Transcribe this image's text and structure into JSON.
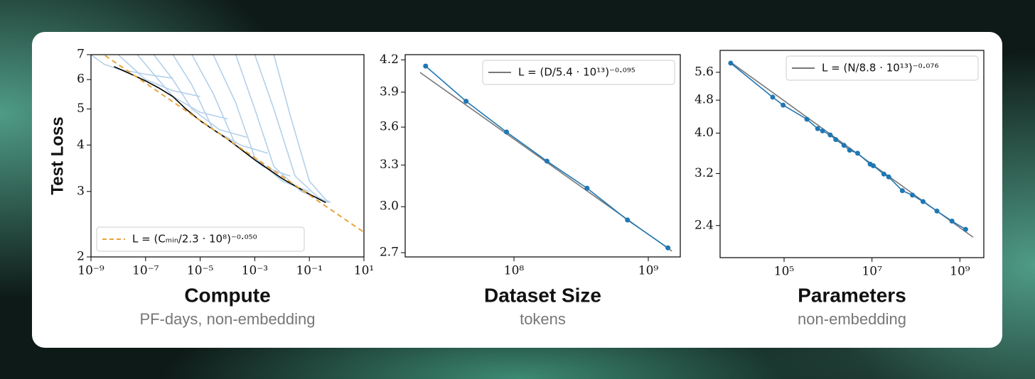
{
  "chart_data": [
    {
      "type": "line",
      "xscale": "log",
      "yscale": "log",
      "ylabel": "Test Loss",
      "xlabel": "Compute",
      "xlabel_sub": "PF-days, non-embedding",
      "xlim": [
        1e-09,
        10
      ],
      "ylim": [
        2,
        7
      ],
      "xticks": [
        {
          "value": 1e-09,
          "label": "10⁻⁹"
        },
        {
          "value": 1e-07,
          "label": "10⁻⁷"
        },
        {
          "value": 1e-05,
          "label": "10⁻⁵"
        },
        {
          "value": 0.001,
          "label": "10⁻³"
        },
        {
          "value": 0.1,
          "label": "10⁻¹"
        },
        {
          "value": 10,
          "label": "10¹"
        }
      ],
      "yticks": [
        2,
        3,
        4,
        5,
        6,
        7
      ],
      "legend": "lower left",
      "series": [
        {
          "color": "#b3d0ea",
          "x": [
            1e-09,
            3e-09,
            1e-08,
            1e-07,
            1e-06
          ],
          "values": [
            7,
            6.6,
            6.4,
            6.2,
            6.05
          ]
        },
        {
          "color": "#b3d0ea",
          "x": [
            1e-08,
            3e-08,
            1e-07,
            1e-06,
            1e-05
          ],
          "values": [
            7,
            6.5,
            6.0,
            5.6,
            5.4
          ]
        },
        {
          "color": "#b3d0ea",
          "x": [
            5e-08,
            2e-07,
            1e-06,
            1e-05,
            0.0001
          ],
          "values": [
            7,
            6.2,
            5.4,
            4.9,
            4.7
          ]
        },
        {
          "color": "#b3d0ea",
          "x": [
            2e-07,
            1e-06,
            5e-06,
            5e-05,
            0.0005
          ],
          "values": [
            7,
            6.0,
            5.0,
            4.4,
            4.2
          ]
        },
        {
          "color": "#b3d0ea",
          "x": [
            1e-06,
            5e-06,
            3e-05,
            0.0003,
            0.003
          ],
          "values": [
            7,
            5.8,
            4.4,
            4.0,
            3.8
          ]
        },
        {
          "color": "#b3d0ea",
          "x": [
            5e-06,
            3e-05,
            0.0002,
            0.002,
            0.02
          ],
          "values": [
            7,
            5.5,
            4.0,
            3.5,
            3.3
          ]
        },
        {
          "color": "#b3d0ea",
          "x": [
            3e-05,
            0.0002,
            0.001,
            0.01,
            0.1
          ],
          "values": [
            7,
            5.2,
            3.7,
            3.2,
            3.0
          ]
        },
        {
          "color": "#b3d0ea",
          "x": [
            0.0002,
            0.001,
            0.005,
            0.05,
            0.3
          ],
          "values": [
            7,
            5.0,
            3.5,
            3.0,
            2.85
          ]
        },
        {
          "color": "#b3d0ea",
          "x": [
            0.001,
            0.005,
            0.03,
            0.2,
            0.5
          ],
          "values": [
            7,
            5.0,
            3.3,
            2.9,
            2.8
          ]
        },
        {
          "color": "#b3d0ea",
          "x": [
            0.005,
            0.02,
            0.1,
            0.4,
            0.6
          ],
          "values": [
            7,
            4.8,
            3.2,
            2.85,
            2.8
          ]
        },
        {
          "color": "#000000",
          "x": [
            7e-09,
            3e-08,
            1e-07,
            3e-07,
            1e-06,
            3e-06,
            1e-05,
            3e-05,
            0.0001,
            0.001,
            0.01,
            0.1,
            0.4
          ],
          "values": [
            6.5,
            6.2,
            5.95,
            5.7,
            5.4,
            5.0,
            4.65,
            4.4,
            4.15,
            3.65,
            3.25,
            2.95,
            2.8
          ]
        },
        {
          "name": "L = (Cₘᵢₙ/2.3 · 10⁸)⁻⁰·⁰⁵⁰",
          "color": "#e8a33a",
          "dash": true,
          "x": [
            1e-09,
            10
          ],
          "values": [
            7.39,
            2.33
          ]
        }
      ]
    },
    {
      "type": "line",
      "xscale": "log",
      "yscale": "log",
      "xlabel": "Dataset Size",
      "xlabel_sub": "tokens",
      "xlim": [
        15500000.0,
        1730000000.0
      ],
      "ylim": [
        2.674,
        4.25
      ],
      "xticks": [
        {
          "value": 100000000.0,
          "label": "10⁸"
        },
        {
          "value": 1000000000.0,
          "label": "10⁹"
        }
      ],
      "yticks": [
        2.7,
        {
          "value": 3,
          "label": "3.0"
        },
        3.3,
        3.6,
        3.9,
        4.2
      ],
      "legend": "upper right",
      "series": [
        {
          "name": "L = (D/5.4 · 10¹³)⁻⁰·⁰⁹⁵",
          "color": "#777777",
          "x": [
            20000000.0,
            1500000000.0
          ],
          "values": [
            4.08,
            2.71
          ]
        },
        {
          "color": "#1f77b4",
          "marker": true,
          "x": [
            22000000.0,
            44000000.0,
            88000000.0,
            176000000.0,
            350000000.0,
            700000000.0,
            1400000000.0
          ],
          "values": [
            4.14,
            3.82,
            3.56,
            3.33,
            3.13,
            2.91,
            2.73
          ]
        }
      ]
    },
    {
      "type": "line",
      "xscale": "log",
      "yscale": "log",
      "xlabel": "Parameters",
      "xlabel_sub": "non-embedding",
      "xlim": [
        3500.0,
        3500000000.0
      ],
      "ylim": [
        2.01,
        6.32
      ],
      "xticks": [
        {
          "value": 100000.0,
          "label": "10⁵"
        },
        {
          "value": 10000000.0,
          "label": "10⁷"
        },
        {
          "value": 1000000000.0,
          "label": "10⁹"
        }
      ],
      "yticks": [
        2.4,
        3.2,
        {
          "value": 4,
          "label": "4.0"
        },
        4.8,
        5.6
      ],
      "legend": "upper right",
      "series": [
        {
          "name": "L = (N/8.8 · 10¹³)⁻⁰·⁰⁷⁶",
          "color": "#777777",
          "x": [
            6100.0,
            2000000000.0
          ],
          "values": [
            5.92,
            2.25
          ]
        },
        {
          "color": "#1f77b4",
          "marker": true,
          "x": [
            6100.0,
            55000.0,
            95000.0,
            330000.0,
            580000.0,
            750000.0,
            1120000.0,
            1500000.0,
            2300000.0,
            3100000.0,
            4700000.0,
            9100000.0,
            10700000.0,
            18600000.0,
            24000000.0,
            49000000.0,
            83000000.0,
            145000000.0,
            300000000.0,
            660000000.0,
            1350000000.0
          ],
          "values": [
            5.89,
            4.88,
            4.67,
            4.32,
            4.1,
            4.05,
            3.96,
            3.86,
            3.74,
            3.64,
            3.58,
            3.37,
            3.34,
            3.19,
            3.14,
            2.91,
            2.84,
            2.74,
            2.6,
            2.46,
            2.35
          ]
        }
      ]
    }
  ]
}
